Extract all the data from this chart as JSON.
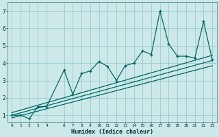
{
  "xlabel": "Humidex (Indice chaleur)",
  "bg_color": "#cce8e8",
  "grid_color": "#99cccc",
  "line_color": "#006666",
  "xlim": [
    -0.5,
    23.5
  ],
  "ylim": [
    0.6,
    7.5
  ],
  "xticks": [
    0,
    1,
    2,
    3,
    4,
    6,
    7,
    8,
    9,
    10,
    11,
    12,
    13,
    14,
    15,
    16,
    17,
    18,
    19,
    20,
    21,
    22,
    23
  ],
  "yticks": [
    1,
    2,
    3,
    4,
    5,
    6,
    7
  ],
  "main_x": [
    0,
    1,
    2,
    3,
    4,
    6,
    7,
    8,
    9,
    10,
    11,
    12,
    13,
    14,
    15,
    16,
    17,
    18,
    19,
    20,
    21,
    22,
    23
  ],
  "main_y": [
    1.0,
    1.0,
    0.8,
    1.5,
    1.5,
    3.6,
    2.2,
    3.4,
    3.55,
    4.1,
    3.8,
    3.0,
    3.85,
    4.0,
    4.7,
    4.5,
    7.0,
    5.1,
    4.4,
    4.4,
    4.3,
    6.4,
    4.2
  ],
  "line1_x": [
    0,
    23
  ],
  "line1_y": [
    1.0,
    4.15
  ],
  "line2_x": [
    0,
    23
  ],
  "line2_y": [
    0.85,
    3.85
  ],
  "line3_x": [
    0,
    23
  ],
  "line3_y": [
    1.15,
    4.45
  ]
}
